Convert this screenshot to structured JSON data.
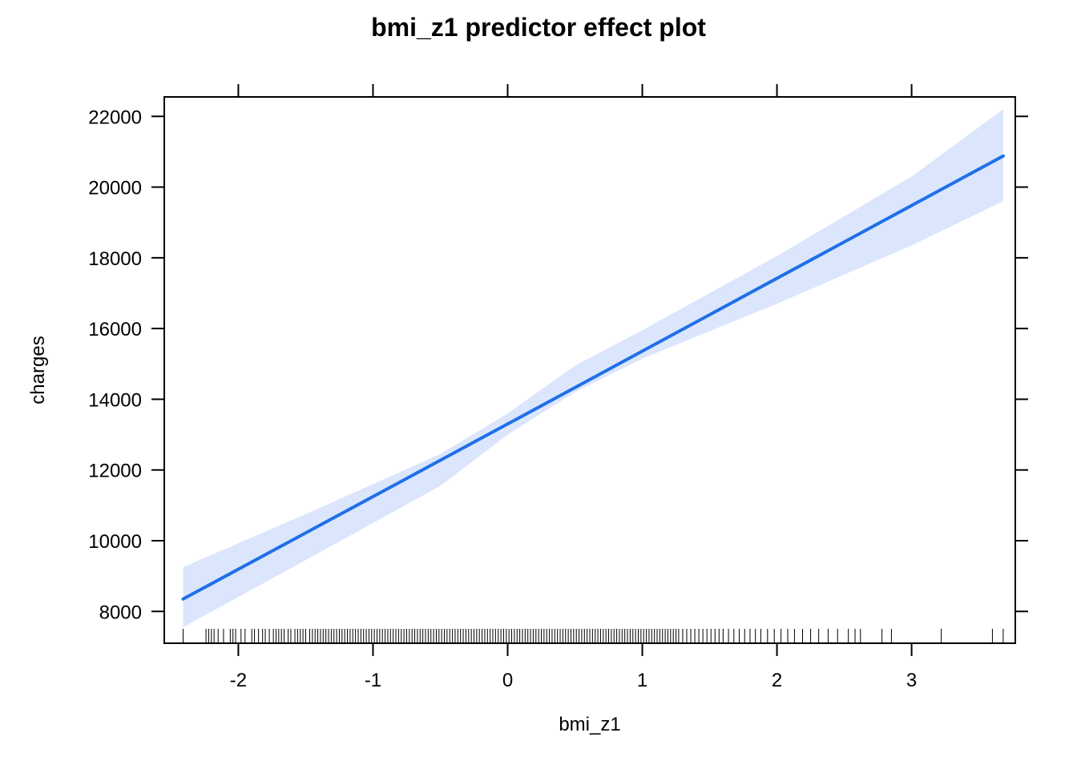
{
  "chart_data": {
    "type": "line",
    "title": "bmi_z1 predictor effect plot",
    "xlabel": "bmi_z1",
    "ylabel": "charges",
    "xlim": [
      -2.55,
      3.77
    ],
    "ylim": [
      7100,
      22550
    ],
    "x_ticks": [
      -2,
      -1,
      0,
      1,
      2,
      3
    ],
    "x_tick_labels": [
      "-2",
      "-1",
      "0",
      "1",
      "2",
      "3"
    ],
    "y_ticks": [
      8000,
      10000,
      12000,
      14000,
      16000,
      18000,
      20000,
      22000
    ],
    "y_tick_labels": [
      "8000",
      "10000",
      "12000",
      "14000",
      "16000",
      "18000",
      "20000",
      "22000"
    ],
    "grid": false,
    "series": [
      {
        "x": [
          -2.41,
          0,
          3.68
        ],
        "y": [
          8350,
          13300,
          20880
        ],
        "color": "#1f6fe8"
      }
    ],
    "confidence_band": {
      "x": [
        -2.41,
        -1.5,
        -0.5,
        0,
        0.5,
        1,
        2,
        3,
        3.68
      ],
      "lower": [
        7550,
        9450,
        11550,
        13000,
        14200,
        15150,
        16700,
        18350,
        19600
      ],
      "upper": [
        9250,
        10750,
        12450,
        13600,
        14950,
        15950,
        18050,
        20300,
        22200
      ],
      "color": "#dbe6fd"
    },
    "rug": [
      -2.41,
      -2.24,
      -2.22,
      -2.2,
      -2.18,
      -2.15,
      -2.11,
      -2.06,
      -2.04,
      -2.02,
      -1.98,
      -1.95,
      -1.9,
      -1.88,
      -1.85,
      -1.82,
      -1.8,
      -1.77,
      -1.74,
      -1.72,
      -1.7,
      -1.68,
      -1.66,
      -1.63,
      -1.61,
      -1.58,
      -1.56,
      -1.54,
      -1.52,
      -1.5,
      -1.47,
      -1.45,
      -1.43,
      -1.41,
      -1.39,
      -1.37,
      -1.35,
      -1.33,
      -1.31,
      -1.29,
      -1.27,
      -1.25,
      -1.23,
      -1.21,
      -1.19,
      -1.17,
      -1.15,
      -1.13,
      -1.11,
      -1.09,
      -1.07,
      -1.05,
      -1.03,
      -1.01,
      -0.99,
      -0.97,
      -0.95,
      -0.93,
      -0.91,
      -0.89,
      -0.87,
      -0.85,
      -0.83,
      -0.81,
      -0.79,
      -0.77,
      -0.75,
      -0.73,
      -0.71,
      -0.69,
      -0.67,
      -0.65,
      -0.63,
      -0.61,
      -0.59,
      -0.57,
      -0.55,
      -0.53,
      -0.51,
      -0.49,
      -0.47,
      -0.45,
      -0.43,
      -0.41,
      -0.39,
      -0.37,
      -0.35,
      -0.33,
      -0.31,
      -0.29,
      -0.27,
      -0.25,
      -0.23,
      -0.21,
      -0.19,
      -0.17,
      -0.15,
      -0.13,
      -0.11,
      -0.09,
      -0.07,
      -0.05,
      -0.03,
      -0.01,
      0.01,
      0.03,
      0.05,
      0.07,
      0.09,
      0.11,
      0.13,
      0.15,
      0.17,
      0.19,
      0.21,
      0.23,
      0.25,
      0.27,
      0.29,
      0.31,
      0.33,
      0.35,
      0.37,
      0.39,
      0.41,
      0.43,
      0.45,
      0.47,
      0.49,
      0.51,
      0.53,
      0.55,
      0.57,
      0.59,
      0.61,
      0.63,
      0.65,
      0.67,
      0.69,
      0.71,
      0.73,
      0.75,
      0.77,
      0.79,
      0.81,
      0.83,
      0.85,
      0.87,
      0.89,
      0.91,
      0.93,
      0.95,
      0.97,
      0.99,
      1.01,
      1.03,
      1.05,
      1.07,
      1.09,
      1.11,
      1.13,
      1.15,
      1.17,
      1.19,
      1.21,
      1.23,
      1.25,
      1.27,
      1.3,
      1.33,
      1.36,
      1.39,
      1.42,
      1.45,
      1.48,
      1.51,
      1.54,
      1.57,
      1.6,
      1.64,
      1.68,
      1.72,
      1.76,
      1.8,
      1.84,
      1.88,
      1.93,
      1.98,
      2.03,
      2.08,
      2.13,
      2.19,
      2.25,
      2.31,
      2.38,
      2.45,
      2.53,
      2.58,
      2.62,
      2.78,
      2.85,
      3.22,
      3.6,
      3.68
    ],
    "annotations": []
  },
  "colors": {
    "line": "#1f6fe8",
    "band": "#dbe6fd",
    "axis": "#000000",
    "background": "#ffffff"
  }
}
